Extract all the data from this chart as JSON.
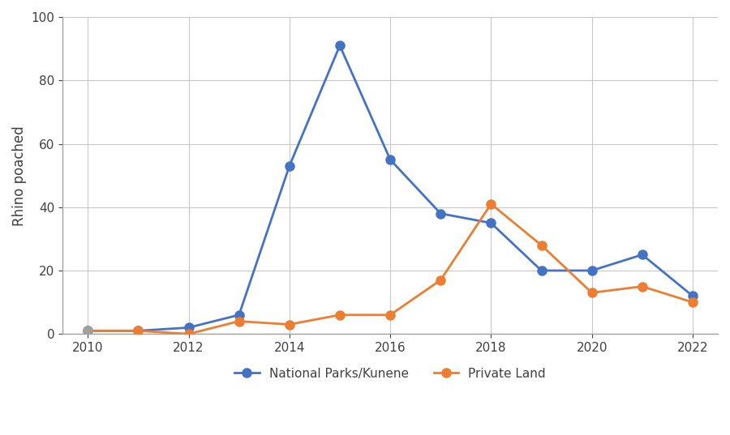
{
  "years": [
    2010,
    2011,
    2012,
    2013,
    2014,
    2015,
    2016,
    2017,
    2018,
    2019,
    2020,
    2021,
    2022
  ],
  "national_parks": [
    1,
    1,
    2,
    6,
    53,
    91,
    55,
    38,
    35,
    20,
    20,
    25,
    12
  ],
  "private_land": [
    1,
    1,
    0,
    4,
    3,
    6,
    6,
    17,
    41,
    28,
    13,
    15,
    10
  ],
  "np_color": "#4472C4",
  "pl_color": "#ED7D31",
  "np_marker_2010_color": "#A0A0A0",
  "marker": "o",
  "linewidth": 2,
  "markersize": 8,
  "ylabel": "Rhino poached",
  "ylim": [
    0,
    100
  ],
  "yticks": [
    0,
    20,
    40,
    60,
    80,
    100
  ],
  "xlim": [
    2009.5,
    2022.5
  ],
  "xticks": [
    2010,
    2012,
    2014,
    2016,
    2018,
    2020,
    2022
  ],
  "legend_np": "National Parks/Kunene",
  "legend_pl": "Private Land",
  "grid_color": "#C8C8C8",
  "background_color": "#FFFFFF",
  "spine_color": "#A0A0A0"
}
